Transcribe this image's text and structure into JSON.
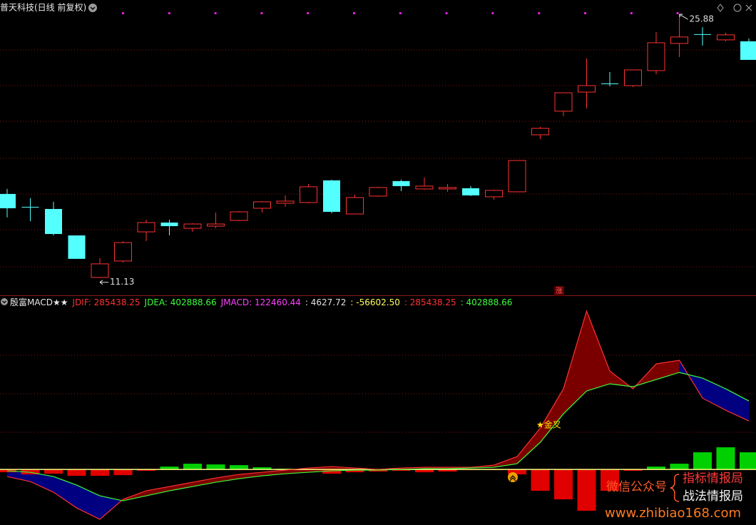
{
  "header": {
    "title": "普天科技(日线 前复权)",
    "signal": "涨"
  },
  "chart_data": [
    {
      "type": "candlestick",
      "ylim": [
        10.24,
        26.68
      ],
      "up_color": "#ff3232",
      "down_color": "#54ffff",
      "open": [
        15.83,
        15.11,
        14.99,
        13.51,
        11.16,
        12.08,
        13.71,
        14.23,
        13.91,
        14.03,
        14.35,
        15.03,
        15.31,
        15.35,
        16.59,
        14.71,
        15.71,
        16.55,
        16.11,
        16.11,
        16.15,
        15.67,
        15.95,
        19.14,
        20.46,
        21.53,
        22.01,
        21.89,
        22.73,
        24.25,
        24.77,
        24.45,
        24.37
      ],
      "high": [
        16.11,
        15.59,
        15.39,
        13.51,
        12.24,
        13.19,
        14.39,
        14.39,
        14.19,
        14.79,
        14.87,
        15.43,
        15.75,
        16.39,
        16.63,
        15.79,
        16.23,
        16.63,
        16.75,
        16.39,
        16.27,
        16.07,
        17.7,
        19.58,
        21.49,
        23.41,
        22.65,
        22.77,
        24.88,
        25.88,
        25.16,
        24.84,
        24.53
      ],
      "low": [
        14.52,
        14.31,
        13.51,
        12.2,
        11.13,
        12.0,
        13.19,
        13.51,
        13.71,
        13.91,
        14.31,
        14.79,
        15.11,
        15.31,
        14.75,
        14.71,
        15.67,
        15.99,
        16.07,
        15.95,
        15.71,
        15.51,
        15.95,
        18.9,
        20.18,
        20.62,
        21.85,
        21.81,
        22.53,
        23.49,
        24.13,
        24.37,
        23.33
      ],
      "close": [
        15.03,
        15.11,
        13.59,
        12.2,
        11.92,
        13.11,
        14.23,
        14.03,
        14.15,
        14.15,
        14.83,
        15.39,
        15.43,
        16.23,
        14.83,
        15.63,
        16.19,
        16.27,
        16.27,
        16.19,
        15.75,
        16.03,
        17.7,
        19.5,
        21.49,
        21.89,
        22.01,
        22.77,
        24.29,
        24.61,
        24.77,
        24.73,
        23.33
      ]
    },
    {
      "type": "macd",
      "title": "殷富MACD★★",
      "readout": [
        {
          "text": "JDIF: 285438.25",
          "color": "#ff3232"
        },
        {
          "text": "JDEA: 402888.66",
          "color": "#3cff3c"
        },
        {
          "text": "JMACD: 122460.44",
          "color": "#ff40ff"
        },
        {
          "text": ": 4627.72",
          "color": "#e0e0e0"
        },
        {
          "text": ": -56602.50",
          "color": "#ffff60"
        },
        {
          "text": ": 285438.25",
          "color": "#ff3232"
        },
        {
          "text": ": 402888.66",
          "color": "#3cff3c"
        }
      ],
      "ylim": [
        -327000,
        957000
      ],
      "series": [
        {
          "color": "#ff3232",
          "values": [
            -41950,
            -71315,
            -134240,
            -226530,
            -293650,
            -176190,
            -125850,
            -100680,
            -75510,
            -50340,
            -29365,
            -16780,
            -4195,
            8390,
            16780,
            8390,
            0,
            8390,
            12585,
            12585,
            12585,
            25170,
            75510,
            243310,
            474035,
            931290,
            578910,
            474035,
            620860,
            641835,
            419500,
            348185,
            285438.25
          ]
        },
        {
          "color": "#3cff3c",
          "values": [
            -8390,
            -16780,
            -41950,
            -92290,
            -155215,
            -184580,
            -155215,
            -125850,
            -100680,
            -75510,
            -54535,
            -37755,
            -25170,
            -16780,
            -8390,
            -4195,
            -4195,
            0,
            4195,
            4195,
            8390,
            12585,
            33560,
            159410,
            327210,
            461450,
            503400,
            486620,
            528570,
            570520,
            536960,
            474035,
            402888.66
          ]
        }
      ],
      "fill_up_color": "#7a0000",
      "fill_down_color": "#000080",
      "histogram": {
        "up_color": "#00d000",
        "down_color": "#e00000",
        "values": [
          -16780,
          -29365,
          -25170,
          -37755,
          -37755,
          -33560,
          -8390,
          16780,
          33560,
          29365,
          25170,
          12585,
          4195,
          -4195,
          -25170,
          -16780,
          -12585,
          -8390,
          -16780,
          -12585,
          -4195,
          -4195,
          -29365,
          -125850,
          -176190,
          -243310,
          -125850,
          -8390,
          16780,
          33560,
          100680,
          130045,
          100680
        ]
      },
      "annotation": "★金叉"
    }
  ],
  "watermark": {
    "line1": "微信公众号",
    "line2": "指标情报局",
    "line3": "战法情报局",
    "url": "www.zhibiao168.com"
  }
}
